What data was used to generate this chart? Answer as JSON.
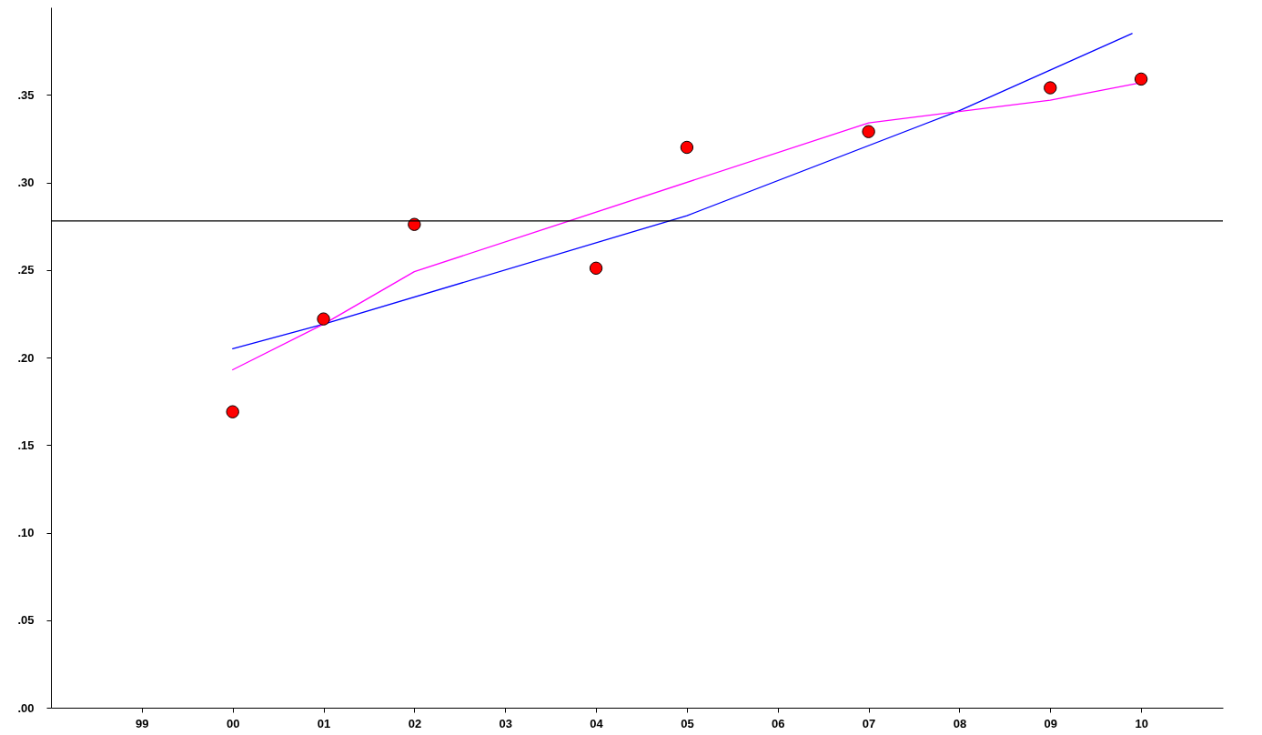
{
  "chart_data": {
    "type": "scatter",
    "xlim": [
      1998,
      2010.9
    ],
    "ylim": [
      0,
      0.4
    ],
    "xticks": [
      {
        "value": 1999,
        "label": "99"
      },
      {
        "value": 2000,
        "label": "00"
      },
      {
        "value": 2001,
        "label": "01"
      },
      {
        "value": 2002,
        "label": "02"
      },
      {
        "value": 2003,
        "label": "03"
      },
      {
        "value": 2004,
        "label": "04"
      },
      {
        "value": 2005,
        "label": "05"
      },
      {
        "value": 2006,
        "label": "06"
      },
      {
        "value": 2007,
        "label": "07"
      },
      {
        "value": 2008,
        "label": "08"
      },
      {
        "value": 2009,
        "label": "09"
      },
      {
        "value": 2010,
        "label": "10"
      }
    ],
    "yticks": [
      {
        "value": 0,
        "label": ".00"
      },
      {
        "value": 0.05,
        "label": ".05"
      },
      {
        "value": 0.1,
        "label": ".10"
      },
      {
        "value": 0.15,
        "label": ".15"
      },
      {
        "value": 0.2,
        "label": ".20"
      },
      {
        "value": 0.25,
        "label": ".25"
      },
      {
        "value": 0.3,
        "label": ".30"
      },
      {
        "value": 0.35,
        "label": ".35"
      }
    ],
    "series": [
      {
        "type": "line",
        "color": "#0000ff",
        "marker": "none",
        "x": [
          2000,
          2001,
          2005,
          2008,
          2009.9
        ],
        "values": [
          0.205,
          0.219,
          0.281,
          0.341,
          0.385
        ]
      },
      {
        "type": "line",
        "color": "#ff00ff",
        "marker": "none",
        "x": [
          2000,
          2001,
          2002,
          2007,
          2009,
          2010
        ],
        "values": [
          0.193,
          0.219,
          0.249,
          0.334,
          0.347,
          0.357
        ]
      },
      {
        "color": "#ff0000",
        "marker": "circle",
        "x": [
          2000,
          2001,
          2002,
          2004,
          2005,
          2007,
          2009,
          2010
        ],
        "values": [
          0.169,
          0.222,
          0.276,
          0.251,
          0.32,
          0.329,
          0.354,
          0.359
        ]
      }
    ],
    "ref_lines": [
      {
        "axis": "y",
        "value": 0.278,
        "color": "#000000"
      }
    ]
  }
}
